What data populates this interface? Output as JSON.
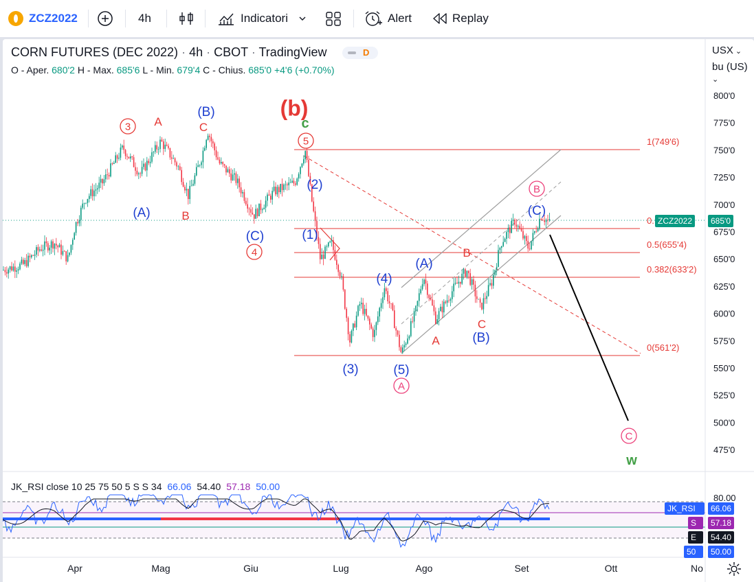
{
  "toolbar": {
    "symbol": "ZCZ2022",
    "symbol_badge": "D",
    "interval": "4h",
    "indicators_label": "Indicatori",
    "alert_label": "Alert",
    "replay_label": "Replay"
  },
  "legend": {
    "title": "CORN FUTURES (DEC 2022)",
    "interval": "4h",
    "exchange": "CBOT",
    "source": "TradingView",
    "data_badge": "D",
    "open_label": "O - Aper.",
    "open": "680'2",
    "high_label": "H - Max.",
    "high": "685'6",
    "low_label": "L - Min.",
    "low": "679'4",
    "close_label": "C - Chius.",
    "close": "685'0",
    "change": "+4'6 (+0.70%)"
  },
  "price_axis": {
    "currency": "USX",
    "unit": "bu (US)",
    "ticks": [
      "800'0",
      "775'0",
      "750'0",
      "725'0",
      "700'0",
      "675'0",
      "650'0",
      "625'0",
      "600'0",
      "575'0",
      "550'0",
      "525'0",
      "500'0",
      "475'0"
    ],
    "last_symbol_label": "ZCZ2022",
    "last_price_label": "685'0"
  },
  "time_axis": [
    "Apr",
    "Mag",
    "Giu",
    "Lug",
    "Ago",
    "Set",
    "Ott",
    "No"
  ],
  "fib_levels": [
    {
      "label": "1(749'6)",
      "price": 749.75
    },
    {
      "label": "0.",
      "price": 685
    },
    {
      "label": "0.5(655'4)",
      "price": 655.5
    },
    {
      "label": "0.382(633'2)",
      "price": 633.25
    },
    {
      "label": "0(561'2)",
      "price": 561.25
    }
  ],
  "wave_labels": [
    {
      "text": "3",
      "style": "circle-red"
    },
    {
      "text": "A",
      "style": "red"
    },
    {
      "text": "(B)",
      "style": "blue"
    },
    {
      "text": "C",
      "style": "red"
    },
    {
      "text": "(b)",
      "style": "red-bold"
    },
    {
      "text": "c",
      "style": "green"
    },
    {
      "text": "5",
      "style": "circle-red"
    },
    {
      "text": "(A)",
      "style": "blue"
    },
    {
      "text": "B",
      "style": "red"
    },
    {
      "text": "(C)",
      "style": "blue"
    },
    {
      "text": "4",
      "style": "circle-red"
    },
    {
      "text": "(2)",
      "style": "blue"
    },
    {
      "text": "(1)",
      "style": "blue"
    },
    {
      "text": "(4)",
      "style": "blue"
    },
    {
      "text": "(3)",
      "style": "blue"
    },
    {
      "text": "(5)",
      "style": "blue"
    },
    {
      "text": "A",
      "style": "circle-pink"
    },
    {
      "text": "(A)",
      "style": "blue"
    },
    {
      "text": "B",
      "style": "red"
    },
    {
      "text": "A",
      "style": "red"
    },
    {
      "text": "C",
      "style": "red"
    },
    {
      "text": "(B)",
      "style": "blue"
    },
    {
      "text": "(C)",
      "style": "blue"
    },
    {
      "text": "B",
      "style": "circle-pink"
    },
    {
      "text": "C",
      "style": "circle-pink"
    },
    {
      "text": "w",
      "style": "green"
    }
  ],
  "rsi": {
    "title": "JK_RSI close 10 25 75 50 5 S S 34",
    "v1": "66.06",
    "v2": "54.40",
    "v3": "57.18",
    "v4": "50.00",
    "axis_top": "80.00",
    "tag_name": "JK_RSI",
    "tag_value": "66.06",
    "s_label": "S",
    "s_value": "57.18",
    "e_label": "E",
    "e_value": "54.40",
    "l50_label": "50",
    "l50_value": "50.00"
  },
  "colors": {
    "up": "#089981",
    "down": "#f23645",
    "wave_blue": "#1e3fd0",
    "wave_red": "#e53935",
    "wave_pink": "#ec407a",
    "wave_green": "#43a047",
    "accent_orange": "#f7a600",
    "rsi_purple": "#9c27b0",
    "rsi_blue": "#2962ff"
  }
}
